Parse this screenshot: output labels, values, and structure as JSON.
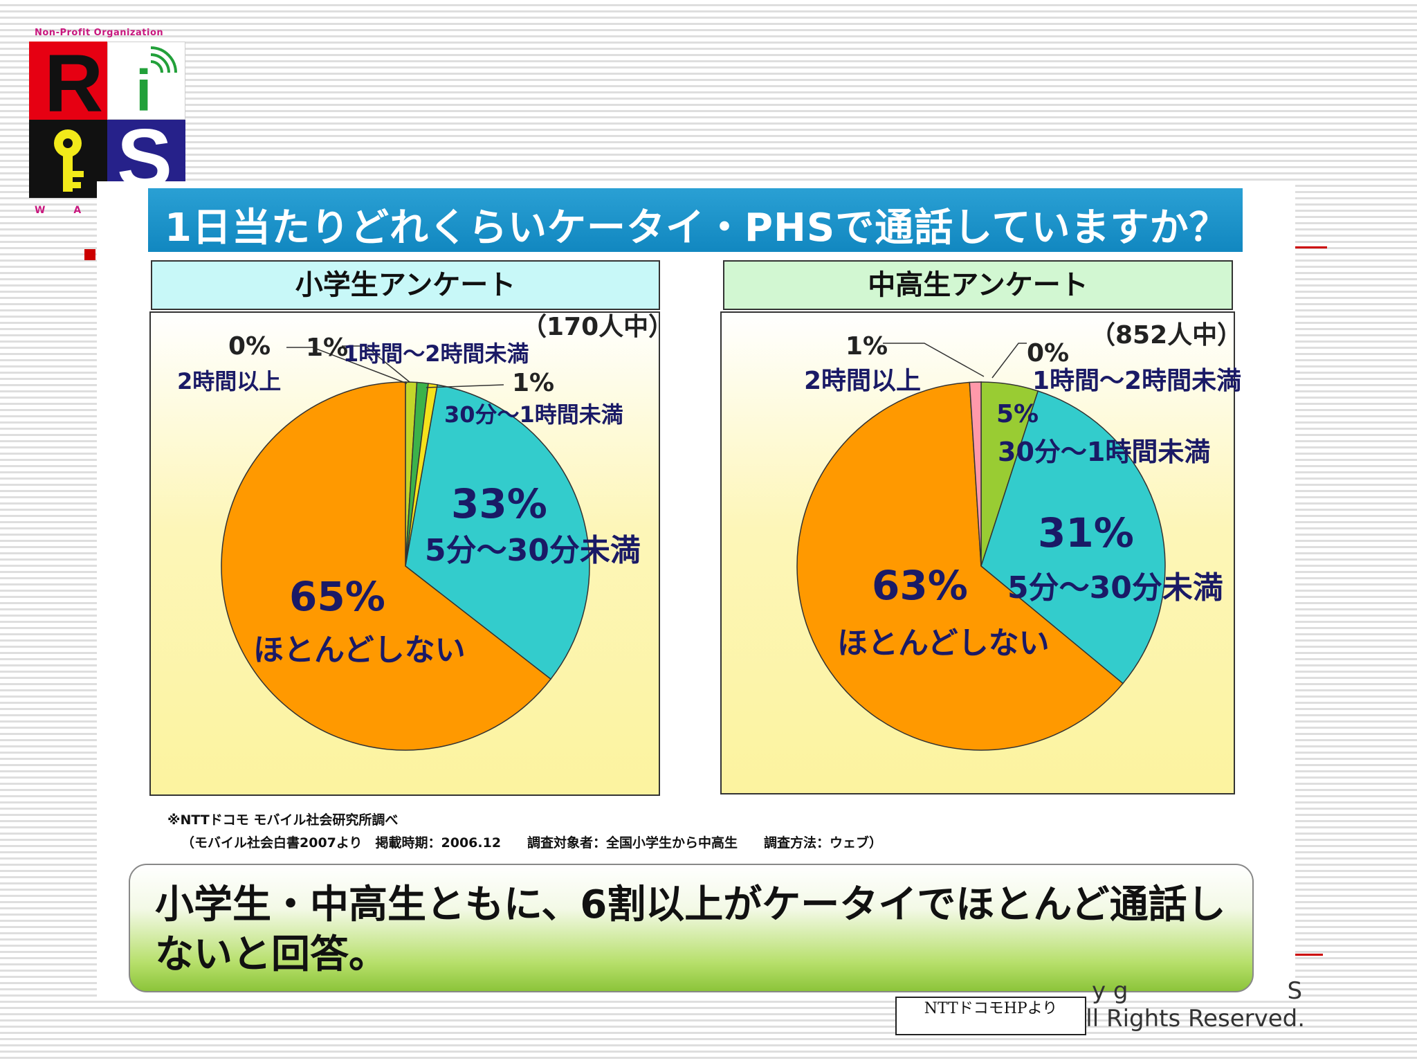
{
  "logo": {
    "top_text": "Non-Profit Organization",
    "letters": {
      "r": "R",
      "i": "i",
      "s": "S"
    },
    "bottom_text": "W A K"
  },
  "title": "1日当たりどれくらいケータイ・PHSで通話していますか？",
  "panels": {
    "left_heading": "小学生アンケート",
    "right_heading": "中高生アンケート"
  },
  "chart_data": [
    {
      "type": "pie",
      "title": "小学生アンケート",
      "note": "（170人中）",
      "start": "12 o'clock, clockwise",
      "slices": [
        {
          "label": "1時間～2時間未満",
          "value": 1,
          "display": "1%",
          "color": "#c3d62a"
        },
        {
          "label": "30分～1時間未満",
          "value": 1,
          "display": "1%",
          "color": "#3cb24a"
        },
        {
          "label": "5分～30分未満",
          "value": 33,
          "display": "33%",
          "color": "#33cccc"
        },
        {
          "label": "ほとんどしない",
          "value": 65,
          "display": "65%",
          "color": "#ff9900"
        },
        {
          "label": "2時間以上",
          "value": 0,
          "display": "0%",
          "color": "#ff99aa"
        }
      ],
      "extra_slice": {
        "value": 0.8,
        "color": "#f5e21c"
      }
    },
    {
      "type": "pie",
      "title": "中高生アンケート",
      "note": "（852人中）",
      "start": "12 o'clock, clockwise",
      "slices": [
        {
          "label": "1時間～2時間未満",
          "value": 0,
          "display": "0%",
          "color": "#c3d62a"
        },
        {
          "label": "30分～1時間未満",
          "value": 5,
          "display": "5%",
          "color": "#99cc33"
        },
        {
          "label": "5分～30分未満",
          "value": 31,
          "display": "31%",
          "color": "#33cccc"
        },
        {
          "label": "ほとんどしない",
          "value": 63,
          "display": "63%",
          "color": "#ff9900"
        },
        {
          "label": "2時間以上",
          "value": 1,
          "display": "1%",
          "color": "#ff99aa"
        }
      ]
    }
  ],
  "source": {
    "line1": "※NTTドコモ モバイル社会研究所調べ",
    "line2": "（モバイル社会白書2007より　掲載時期：2006.12　　調査対象者：全国小学生から中高生　　調査方法：ウェブ）"
  },
  "conclusion": "小学生・中高生ともに、6割以上がケータイでほとんど通話しないと回答。",
  "copyright": {
    "line1": "y g",
    "line1_end": "S",
    "line2": "All Rights Reserved."
  },
  "source_box": "NTTドコモHPより"
}
